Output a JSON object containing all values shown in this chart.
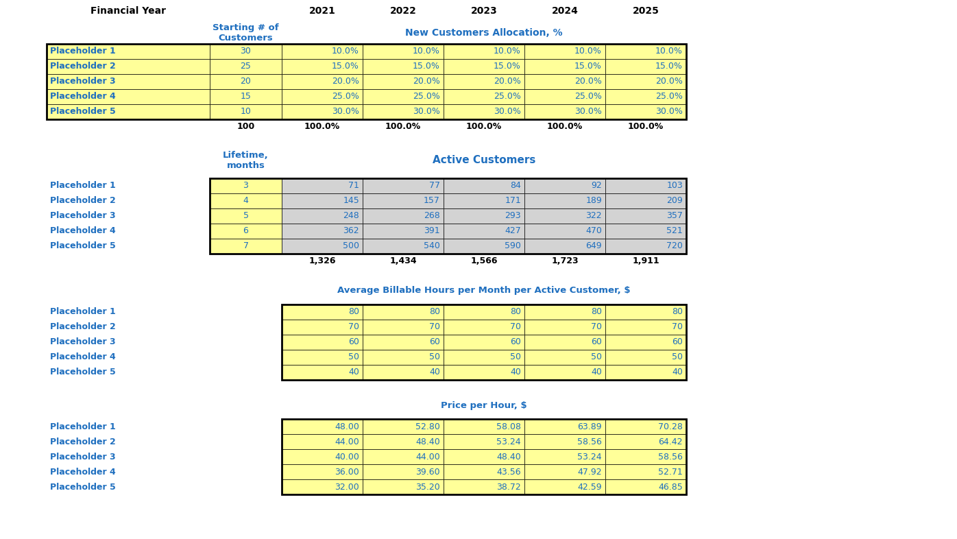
{
  "section1_header_col2": "Starting # of\nCustomers",
  "section1_header_span": "New Customers Allocation, %",
  "section1_rows": [
    [
      "Placeholder 1",
      "30",
      "10.0%",
      "10.0%",
      "10.0%",
      "10.0%",
      "10.0%"
    ],
    [
      "Placeholder 2",
      "25",
      "15.0%",
      "15.0%",
      "15.0%",
      "15.0%",
      "15.0%"
    ],
    [
      "Placeholder 3",
      "20",
      "20.0%",
      "20.0%",
      "20.0%",
      "20.0%",
      "20.0%"
    ],
    [
      "Placeholder 4",
      "15",
      "25.0%",
      "25.0%",
      "25.0%",
      "25.0%",
      "25.0%"
    ],
    [
      "Placeholder 5",
      "10",
      "30.0%",
      "30.0%",
      "30.0%",
      "30.0%",
      "30.0%"
    ]
  ],
  "section1_totals": [
    "100",
    "100.0%",
    "100.0%",
    "100.0%",
    "100.0%",
    "100.0%"
  ],
  "section2_header_col2": "Lifetime,\nmonths",
  "section2_header_span": "Active Customers",
  "section2_rows": [
    [
      "Placeholder 1",
      "3",
      "71",
      "77",
      "84",
      "92",
      "103"
    ],
    [
      "Placeholder 2",
      "4",
      "145",
      "157",
      "171",
      "189",
      "209"
    ],
    [
      "Placeholder 3",
      "5",
      "248",
      "268",
      "293",
      "322",
      "357"
    ],
    [
      "Placeholder 4",
      "6",
      "362",
      "391",
      "427",
      "470",
      "521"
    ],
    [
      "Placeholder 5",
      "7",
      "500",
      "540",
      "590",
      "649",
      "720"
    ]
  ],
  "section2_totals": [
    "1,326",
    "1,434",
    "1,566",
    "1,723",
    "1,911"
  ],
  "section3_header_span": "Average Billable Hours per Month per Active Customer, $",
  "section3_rows": [
    [
      "Placeholder 1",
      "80",
      "80",
      "80",
      "80",
      "80"
    ],
    [
      "Placeholder 2",
      "70",
      "70",
      "70",
      "70",
      "70"
    ],
    [
      "Placeholder 3",
      "60",
      "60",
      "60",
      "60",
      "60"
    ],
    [
      "Placeholder 4",
      "50",
      "50",
      "50",
      "50",
      "50"
    ],
    [
      "Placeholder 5",
      "40",
      "40",
      "40",
      "40",
      "40"
    ]
  ],
  "section4_header_span": "Price per Hour, $",
  "section4_rows": [
    [
      "Placeholder 1",
      "48.00",
      "52.80",
      "58.08",
      "63.89",
      "70.28"
    ],
    [
      "Placeholder 2",
      "44.00",
      "48.40",
      "53.24",
      "58.56",
      "64.42"
    ],
    [
      "Placeholder 3",
      "40.00",
      "44.00",
      "48.40",
      "53.24",
      "58.56"
    ],
    [
      "Placeholder 4",
      "36.00",
      "39.60",
      "43.56",
      "47.92",
      "52.71"
    ],
    [
      "Placeholder 5",
      "32.00",
      "35.20",
      "38.72",
      "42.59",
      "46.85"
    ]
  ],
  "years": [
    "2021",
    "2022",
    "2023",
    "2024",
    "2025"
  ],
  "yellow_fill": "#FFFF99",
  "gray_fill": "#D3D3D3",
  "white": "#FFFFFF",
  "blue": "#1F6FBF",
  "black": "#000000",
  "bg_color": "#FFFFFF"
}
